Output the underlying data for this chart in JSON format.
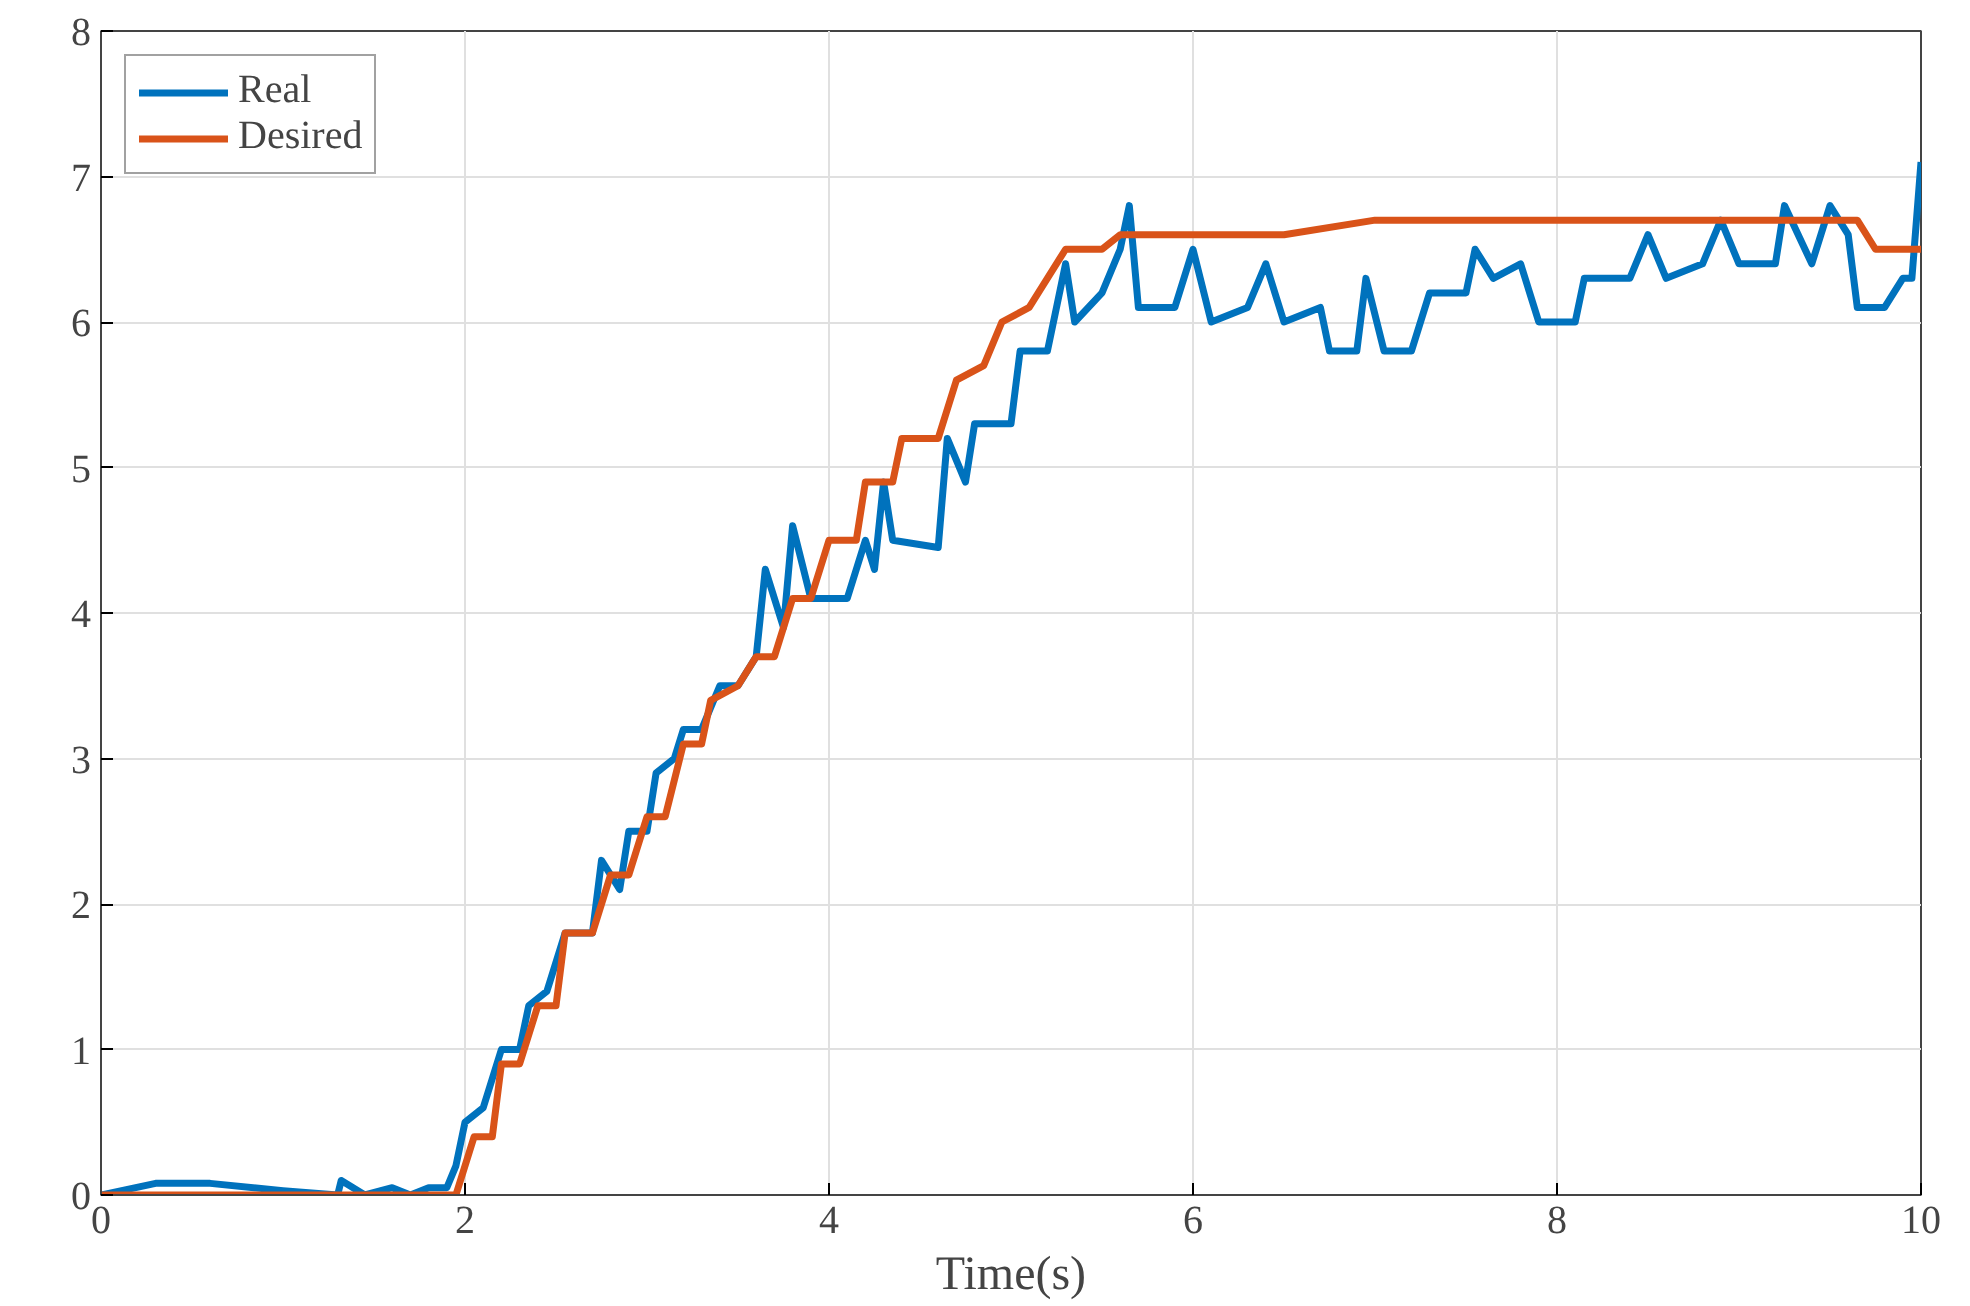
{
  "chart_data": {
    "type": "line",
    "xlabel": "Time(s)",
    "xlim": [
      0,
      10
    ],
    "xticks": [
      0,
      2,
      4,
      6,
      8,
      10
    ],
    "ylim": [
      0,
      8
    ],
    "yticks": [
      0,
      1,
      2,
      3,
      4,
      5,
      6,
      7,
      8
    ],
    "grid": true,
    "legend": "top left",
    "marker": "none",
    "line_style": "solid",
    "series": [
      {
        "name": "Real",
        "color": "#0072bd",
        "x": [
          0,
          0.3,
          0.6,
          1.0,
          1.3,
          1.32,
          1.45,
          1.6,
          1.7,
          1.8,
          1.9,
          1.95,
          2.0,
          2.1,
          2.2,
          2.3,
          2.35,
          2.45,
          2.55,
          2.7,
          2.75,
          2.85,
          2.9,
          3.0,
          3.05,
          3.15,
          3.2,
          3.3,
          3.4,
          3.5,
          3.6,
          3.65,
          3.75,
          3.8,
          3.9,
          4.1,
          4.2,
          4.25,
          4.3,
          4.35,
          4.6,
          4.65,
          4.75,
          4.8,
          5.0,
          5.05,
          5.2,
          5.3,
          5.35,
          5.5,
          5.6,
          5.65,
          5.7,
          5.9,
          6.0,
          6.1,
          6.3,
          6.4,
          6.5,
          6.7,
          6.75,
          6.9,
          6.95,
          7.05,
          7.2,
          7.3,
          7.5,
          7.55,
          7.65,
          7.8,
          7.9,
          8.1,
          8.15,
          8.4,
          8.5,
          8.6,
          8.8,
          8.9,
          9.0,
          9.2,
          9.25,
          9.4,
          9.5,
          9.6,
          9.65,
          9.8,
          9.9,
          9.95,
          10
        ],
        "values": [
          0,
          0.08,
          0.08,
          0.03,
          0,
          0.1,
          0,
          0.05,
          0,
          0.05,
          0.05,
          0.2,
          0.5,
          0.6,
          1.0,
          1.0,
          1.3,
          1.4,
          1.8,
          1.8,
          2.3,
          2.1,
          2.5,
          2.5,
          2.9,
          3.0,
          3.2,
          3.2,
          3.5,
          3.5,
          3.7,
          4.3,
          3.9,
          4.6,
          4.1,
          4.1,
          4.5,
          4.3,
          4.9,
          4.5,
          4.45,
          5.2,
          4.9,
          5.3,
          5.3,
          5.8,
          5.8,
          6.4,
          6.0,
          6.2,
          6.5,
          6.8,
          6.1,
          6.1,
          6.5,
          6.0,
          6.1,
          6.4,
          6.0,
          6.1,
          5.8,
          5.8,
          6.3,
          5.8,
          5.8,
          6.2,
          6.2,
          6.5,
          6.3,
          6.4,
          6.0,
          6.0,
          6.3,
          6.3,
          6.6,
          6.3,
          6.4,
          6.7,
          6.4,
          6.4,
          6.8,
          6.4,
          6.8,
          6.6,
          6.1,
          6.1,
          6.3,
          6.3,
          7.1
        ]
      },
      {
        "name": "Desired",
        "color": "#d95319",
        "x": [
          0,
          1.95,
          2.05,
          2.15,
          2.2,
          2.3,
          2.4,
          2.5,
          2.55,
          2.7,
          2.8,
          2.9,
          3.0,
          3.1,
          3.2,
          3.3,
          3.35,
          3.5,
          3.6,
          3.7,
          3.8,
          3.9,
          4.0,
          4.15,
          4.2,
          4.35,
          4.4,
          4.6,
          4.7,
          4.85,
          4.95,
          5.1,
          5.3,
          5.5,
          5.6,
          6.0,
          6.5,
          7.0,
          7.5,
          8.0,
          8.5,
          9.0,
          9.5,
          9.65,
          9.75,
          10
        ],
        "values": [
          0,
          0,
          0.4,
          0.4,
          0.9,
          0.9,
          1.3,
          1.3,
          1.8,
          1.8,
          2.2,
          2.2,
          2.6,
          2.6,
          3.1,
          3.1,
          3.4,
          3.5,
          3.7,
          3.7,
          4.1,
          4.1,
          4.5,
          4.5,
          4.9,
          4.9,
          5.2,
          5.2,
          5.6,
          5.7,
          6.0,
          6.1,
          6.5,
          6.5,
          6.6,
          6.6,
          6.6,
          6.7,
          6.7,
          6.7,
          6.7,
          6.7,
          6.7,
          6.7,
          6.5,
          6.5
        ]
      }
    ]
  }
}
